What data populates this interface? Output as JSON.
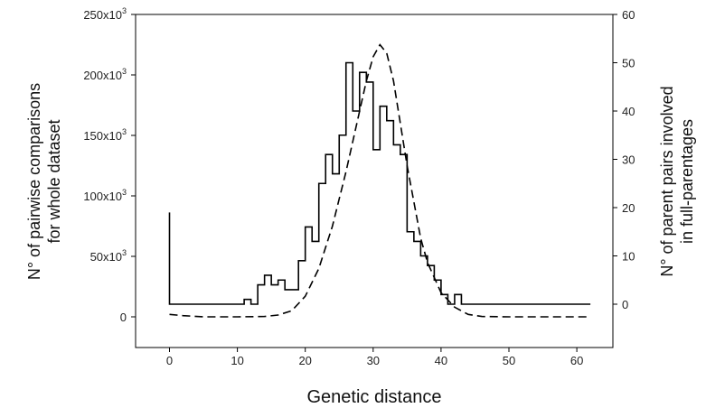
{
  "chart_data": {
    "type": "line",
    "xlabel": "Genetic distance",
    "ylabel_left": [
      "N° of pairwise comparisons",
      "for whole dataset"
    ],
    "ylabel_right": [
      "N° of parent pairs involved",
      "in full-parentages"
    ],
    "xlim": [
      -5,
      65
    ],
    "ylim_left": [
      -25000,
      250000
    ],
    "ylim_right": [
      -10,
      60
    ],
    "x_ticks": [
      0,
      10,
      20,
      30,
      40,
      50,
      60
    ],
    "y_left_ticks": [
      {
        "value": 0,
        "base": "0",
        "exp": ""
      },
      {
        "value": 50000,
        "base": "50x10",
        "exp": "3"
      },
      {
        "value": 100000,
        "base": "100x10",
        "exp": "3"
      },
      {
        "value": 150000,
        "base": "150x10",
        "exp": "3"
      },
      {
        "value": 200000,
        "base": "200x10",
        "exp": "3"
      },
      {
        "value": 250000,
        "base": "250x10",
        "exp": "3"
      }
    ],
    "y_right_ticks": [
      0,
      10,
      20,
      30,
      40,
      50,
      60
    ],
    "grid": false,
    "series": [
      {
        "style": "solid-step",
        "axis": "right",
        "points": [
          [
            0,
            19
          ],
          [
            0,
            0
          ],
          [
            11,
            0
          ],
          [
            11,
            1
          ],
          [
            12,
            1
          ],
          [
            12,
            0
          ],
          [
            13,
            0
          ],
          [
            13,
            4
          ],
          [
            14,
            4
          ],
          [
            14,
            6
          ],
          [
            15,
            6
          ],
          [
            15,
            4
          ],
          [
            16,
            4
          ],
          [
            16,
            5
          ],
          [
            17,
            5
          ],
          [
            17,
            3
          ],
          [
            19,
            3
          ],
          [
            19,
            9
          ],
          [
            20,
            9
          ],
          [
            20,
            16
          ],
          [
            21,
            16
          ],
          [
            21,
            13
          ],
          [
            22,
            13
          ],
          [
            22,
            25
          ],
          [
            23,
            25
          ],
          [
            23,
            31
          ],
          [
            24,
            31
          ],
          [
            24,
            27
          ],
          [
            25,
            27
          ],
          [
            25,
            35
          ],
          [
            26,
            35
          ],
          [
            26,
            50
          ],
          [
            27,
            50
          ],
          [
            27,
            40
          ],
          [
            28,
            40
          ],
          [
            28,
            48
          ],
          [
            29,
            48
          ],
          [
            29,
            46
          ],
          [
            30,
            46
          ],
          [
            30,
            32
          ],
          [
            31,
            32
          ],
          [
            31,
            41
          ],
          [
            32,
            41
          ],
          [
            32,
            38
          ],
          [
            33,
            38
          ],
          [
            33,
            33
          ],
          [
            34,
            33
          ],
          [
            34,
            31
          ],
          [
            35,
            31
          ],
          [
            35,
            15
          ],
          [
            36,
            15
          ],
          [
            36,
            13
          ],
          [
            37,
            13
          ],
          [
            37,
            10
          ],
          [
            38,
            10
          ],
          [
            38,
            8
          ],
          [
            39,
            8
          ],
          [
            39,
            5
          ],
          [
            40,
            5
          ],
          [
            40,
            2
          ],
          [
            41,
            2
          ],
          [
            41,
            0
          ],
          [
            42,
            0
          ],
          [
            42,
            2
          ],
          [
            43,
            2
          ],
          [
            43,
            0
          ],
          [
            62,
            0
          ]
        ]
      },
      {
        "style": "dashed",
        "axis": "left",
        "points": [
          [
            0,
            2000
          ],
          [
            2,
            1000
          ],
          [
            5,
            0
          ],
          [
            10,
            0
          ],
          [
            14,
            300
          ],
          [
            16,
            1500
          ],
          [
            18,
            5000
          ],
          [
            20,
            17000
          ],
          [
            22,
            40000
          ],
          [
            24,
            75000
          ],
          [
            26,
            120000
          ],
          [
            28,
            170000
          ],
          [
            29,
            195000
          ],
          [
            30,
            215000
          ],
          [
            31,
            225000
          ],
          [
            32,
            218000
          ],
          [
            33,
            195000
          ],
          [
            34,
            160000
          ],
          [
            35,
            125000
          ],
          [
            36,
            95000
          ],
          [
            37,
            65000
          ],
          [
            38,
            45000
          ],
          [
            40,
            20000
          ],
          [
            42,
            8000
          ],
          [
            44,
            2000
          ],
          [
            46,
            300
          ],
          [
            50,
            0
          ],
          [
            55,
            0
          ],
          [
            62,
            0
          ]
        ]
      }
    ]
  }
}
